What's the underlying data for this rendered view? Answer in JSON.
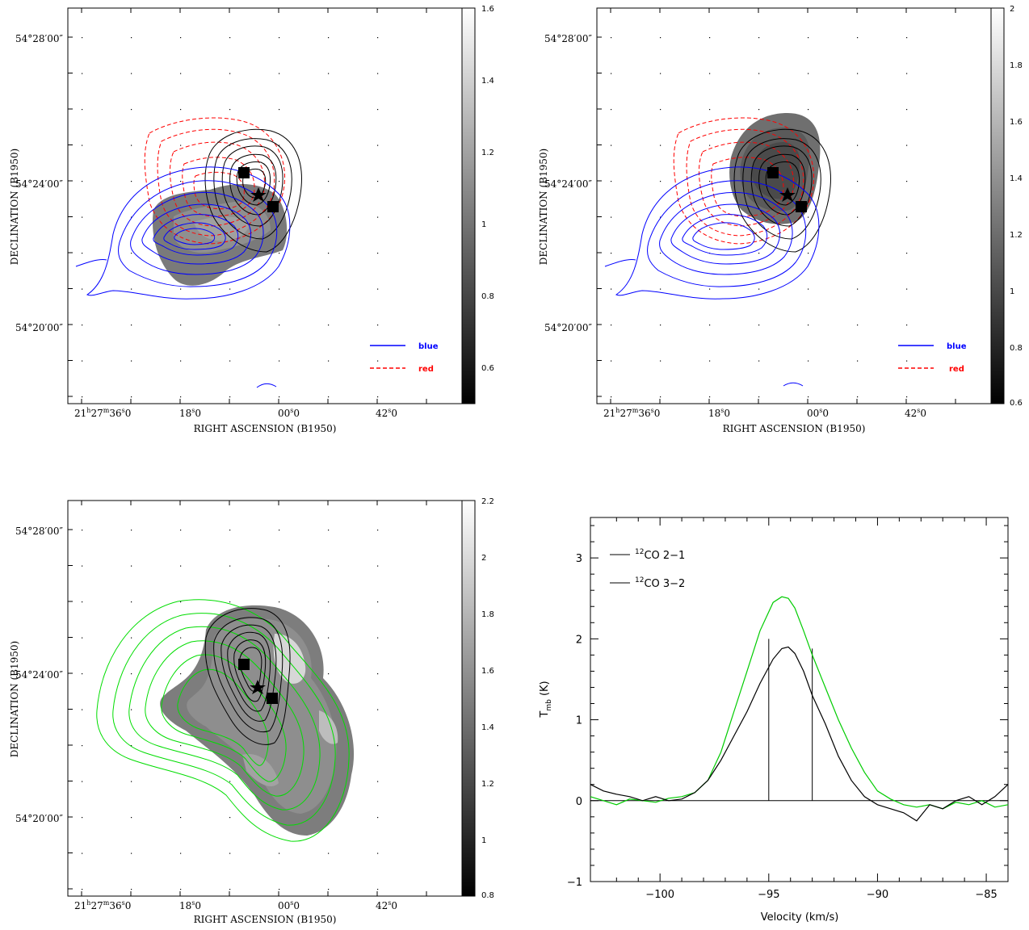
{
  "chart_data": [
    {
      "type": "contour",
      "panel": "top-left",
      "xlabel": "RIGHT ASCENSION (B1950)",
      "ylabel": "DECLINATION (B1950)",
      "x_ticks": [
        "21h27m36s0",
        "18s0",
        "00s0",
        "42s0"
      ],
      "y_ticks": [
        "54°28′00″",
        "54°24′00″",
        "54°20′00″"
      ],
      "colorbar_ticks": [
        "1.6",
        "1.4",
        "1.2",
        "1",
        "0.8",
        "0.6"
      ],
      "colorbar_range": [
        0.5,
        1.6
      ],
      "legend": [
        {
          "label": "blue",
          "color": "#0000ff",
          "style": "solid"
        },
        {
          "label": "red",
          "color": "#ff0000",
          "style": "dashed"
        }
      ]
    },
    {
      "type": "contour",
      "panel": "top-right",
      "xlabel": "RIGHT ASCENSION (B1950)",
      "ylabel": "DECLINATION (B1950)",
      "x_ticks": [
        "21h27m36s0",
        "18s0",
        "00s0",
        "42s0"
      ],
      "y_ticks": [
        "54°28′00″",
        "54°24′00″",
        "54°20′00″"
      ],
      "colorbar_ticks": [
        "2",
        "1.8",
        "1.6",
        "1.4",
        "1.2",
        "1",
        "0.8",
        "0.6"
      ],
      "colorbar_range": [
        0.6,
        2.0
      ],
      "legend": [
        {
          "label": "blue",
          "color": "#0000ff",
          "style": "solid"
        },
        {
          "label": "red",
          "color": "#ff0000",
          "style": "dashed"
        }
      ]
    },
    {
      "type": "contour",
      "panel": "bottom-left",
      "xlabel": "RIGHT ASCENSION (B1950)",
      "ylabel": "DECLINATION (B1950)",
      "x_ticks": [
        "21h27m36s0",
        "18s0",
        "00s0",
        "42s0"
      ],
      "y_ticks": [
        "54°28′00″",
        "54°24′00″",
        "54°20′00″"
      ],
      "colorbar_ticks": [
        "2.2",
        "2",
        "1.8",
        "1.6",
        "1.4",
        "1.2",
        "1",
        "0.8"
      ],
      "colorbar_range": [
        0.8,
        2.2
      ]
    },
    {
      "type": "line",
      "panel": "bottom-right",
      "xlabel": "Velocity (km/s)",
      "ylabel": "T_mb (K)",
      "xlim": [
        -103.2,
        -84.0
      ],
      "ylim": [
        -1,
        3.5
      ],
      "x_ticks": [
        -100,
        -95,
        -90,
        -85
      ],
      "y_ticks": [
        -1,
        0,
        1,
        2,
        3
      ],
      "legend": [
        "12CO 2-1",
        "12CO 3-2"
      ],
      "vlines": [
        -95,
        -93
      ],
      "series": [
        {
          "name": "12CO 2-1",
          "color": "#00cc00",
          "x": [
            -103.2,
            -102.6,
            -102,
            -101.4,
            -100.8,
            -100.2,
            -99.6,
            -99,
            -98.4,
            -97.8,
            -97.2,
            -96.6,
            -96,
            -95.4,
            -94.8,
            -94.4,
            -94.1,
            -93.8,
            -93.4,
            -93,
            -92.4,
            -91.8,
            -91.2,
            -90.6,
            -90,
            -89.4,
            -88.8,
            -88.2,
            -87.6,
            -87,
            -86.4,
            -85.8,
            -85.2,
            -84.6,
            -84
          ],
          "y": [
            0.05,
            0.0,
            -0.05,
            0.02,
            0.0,
            -0.02,
            0.03,
            0.05,
            0.1,
            0.25,
            0.6,
            1.1,
            1.6,
            2.1,
            2.45,
            2.52,
            2.5,
            2.38,
            2.1,
            1.8,
            1.4,
            1.0,
            0.65,
            0.35,
            0.12,
            0.02,
            -0.05,
            -0.08,
            -0.05,
            -0.1,
            -0.02,
            -0.05,
            0.0,
            -0.08,
            -0.05
          ]
        },
        {
          "name": "12CO 3-2",
          "color": "#000000",
          "x": [
            -103.2,
            -102.6,
            -102,
            -101.4,
            -100.8,
            -100.2,
            -99.6,
            -99,
            -98.4,
            -97.8,
            -97.2,
            -96.6,
            -96,
            -95.4,
            -94.8,
            -94.4,
            -94.1,
            -93.8,
            -93.4,
            -93,
            -92.4,
            -91.8,
            -91.2,
            -90.6,
            -90,
            -89.4,
            -88.8,
            -88.2,
            -87.6,
            -87,
            -86.4,
            -85.8,
            -85.2,
            -84.6,
            -84
          ],
          "y": [
            0.2,
            0.12,
            0.08,
            0.05,
            0.0,
            0.05,
            0.0,
            0.02,
            0.1,
            0.25,
            0.5,
            0.8,
            1.1,
            1.45,
            1.75,
            1.88,
            1.9,
            1.82,
            1.6,
            1.3,
            0.95,
            0.55,
            0.25,
            0.05,
            -0.05,
            -0.1,
            -0.15,
            -0.25,
            -0.05,
            -0.1,
            0.0,
            0.05,
            -0.05,
            0.05,
            0.2
          ]
        }
      ]
    }
  ]
}
